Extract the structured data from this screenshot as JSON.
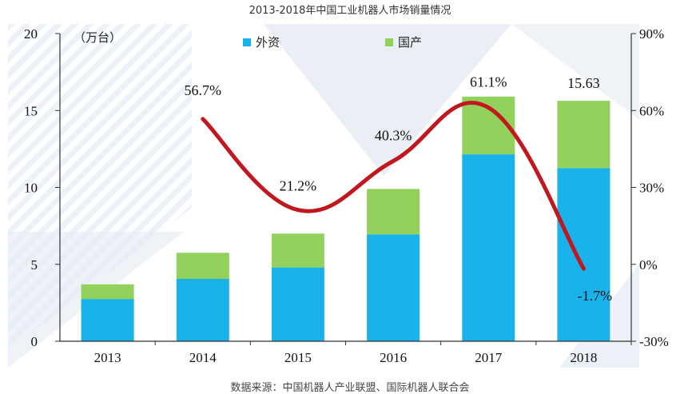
{
  "header": {
    "title": "2013-2018年中国工业机器人市场销量情况"
  },
  "footer": {
    "source": "数据来源：中国机器人产业联盟、国际机器人联合会"
  },
  "colors": {
    "foreign": "#19b2ea",
    "domestic": "#92d15c",
    "line": "#c0181e",
    "watermark": "#d8e3ee"
  },
  "chart_data": {
    "type": "bar",
    "stacked": true,
    "unit_label": "（万台）",
    "categories": [
      "2013",
      "2014",
      "2015",
      "2016",
      "2017",
      "2018"
    ],
    "series": [
      {
        "name": "外资",
        "values": [
          2.75,
          4.05,
          4.8,
          6.95,
          12.15,
          11.25
        ]
      },
      {
        "name": "国产",
        "values": [
          0.95,
          1.7,
          2.2,
          2.95,
          3.75,
          4.38
        ]
      }
    ],
    "totals_label": {
      "category": "2018",
      "text": "15.63"
    },
    "growth_line": {
      "x": [
        "2014",
        "2015",
        "2016",
        "2017",
        "2018"
      ],
      "values": [
        56.7,
        21.2,
        40.3,
        61.1,
        -1.7
      ],
      "labels": [
        "56.7%",
        "21.2%",
        "40.3%",
        "61.1%",
        "-1.7%"
      ]
    },
    "ylim": [
      0,
      20
    ],
    "yticks": [
      "0",
      "5",
      "10",
      "15",
      "20"
    ],
    "y2lim": [
      -30,
      90
    ],
    "y2ticks": [
      "-30%",
      "0%",
      "30%",
      "60%",
      "90%"
    ],
    "legend_position": "top-center",
    "grid": false
  }
}
